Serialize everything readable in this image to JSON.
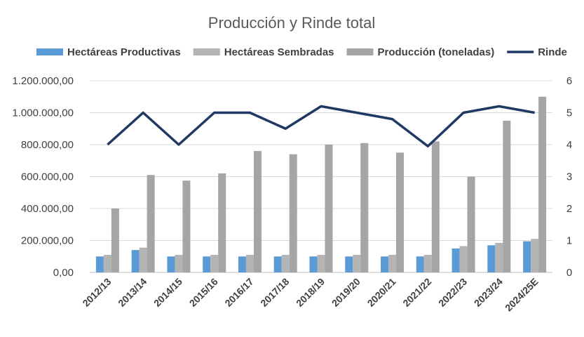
{
  "chart_data": {
    "type": "bar",
    "title": "Producción y Rinde total",
    "xlabel": "",
    "ylabel": "",
    "categories": [
      "2012/13",
      "2013/14",
      "2014/15",
      "2015/16",
      "2016/17",
      "2017/18",
      "2018/19",
      "2019/20",
      "2020/21",
      "2021/22",
      "2022/23",
      "2023/24",
      "2024/25E"
    ],
    "series": [
      {
        "name": "Hectáreas Productivas",
        "kind": "bar",
        "axis": "left",
        "color": "#5B9BD5",
        "values": [
          100000,
          140000,
          100000,
          100000,
          100000,
          100000,
          100000,
          100000,
          100000,
          100000,
          150000,
          170000,
          195000
        ]
      },
      {
        "name": "Hectáreas Sembradas",
        "kind": "bar",
        "axis": "left",
        "color": "#A5A5A5",
        "values": [
          110000,
          155000,
          110000,
          110000,
          110000,
          110000,
          110000,
          110000,
          110000,
          110000,
          165000,
          185000,
          210000
        ]
      },
      {
        "name": "Producción (toneladas)",
        "kind": "bar",
        "axis": "left",
        "color": "#A5A5A5",
        "values": [
          400000,
          610000,
          575000,
          620000,
          760000,
          740000,
          800000,
          810000,
          750000,
          820000,
          600000,
          950000,
          1100000
        ]
      },
      {
        "name": "Rinde",
        "kind": "line",
        "axis": "right",
        "color": "#1F3864",
        "values": [
          4,
          5,
          4,
          5,
          5,
          4.5,
          5.2,
          5,
          4.8,
          3.95,
          5,
          5.2,
          5
        ]
      }
    ],
    "ylim": [
      0,
      1200000
    ],
    "y_ticks": [
      "0,00",
      "200.000,00",
      "400.000,00",
      "600.000,00",
      "800.000,00",
      "1.000.000,00",
      "1.200.000,00"
    ],
    "y2lim": [
      0,
      6
    ],
    "y2_ticks": [
      "0",
      "1",
      "2",
      "3",
      "4",
      "5",
      "6"
    ],
    "grid": "horizontal",
    "legend": "top"
  }
}
